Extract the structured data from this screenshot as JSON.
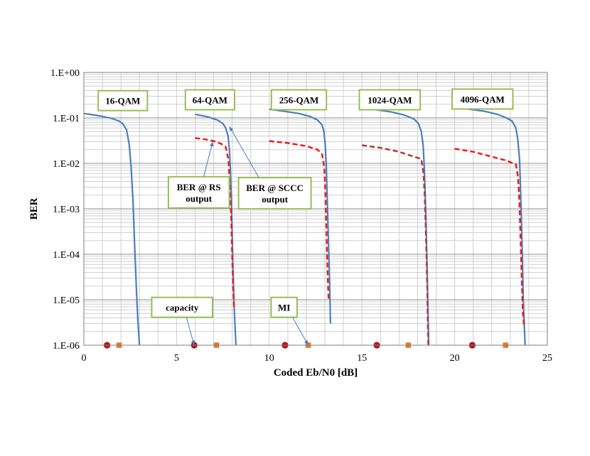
{
  "chart_data": {
    "type": "line",
    "xlabel": "Coded Eb/N0 [dB]",
    "ylabel": "BER",
    "xlim": [
      0,
      25
    ],
    "ylim": [
      1e-06,
      1
    ],
    "y_scale": "log",
    "grid": true,
    "x_ticks": [
      "0",
      "5",
      "10",
      "15",
      "20",
      "25"
    ],
    "y_ticks": [
      "1.E+00",
      "1.E-01",
      "1.E-02",
      "1.E-03",
      "1.E-04",
      "1.E-05",
      "1.E-06"
    ],
    "series": [
      {
        "group": "16-QAM",
        "kind": "sccc",
        "color": "#4a7ebf",
        "points": [
          [
            0.0,
            0.125
          ],
          [
            0.8,
            0.112
          ],
          [
            1.5,
            0.098
          ],
          [
            1.9,
            0.085
          ],
          [
            2.1,
            0.074
          ],
          [
            2.3,
            0.055
          ],
          [
            2.45,
            0.025
          ],
          [
            2.55,
            0.008
          ],
          [
            2.65,
            0.0015
          ],
          [
            2.75,
            0.00012
          ],
          [
            2.85,
            1.2e-05
          ],
          [
            2.92,
            3e-06
          ],
          [
            3.0,
            1e-06
          ]
        ]
      },
      {
        "group": "64-QAM",
        "kind": "sccc",
        "color": "#4a7ebf",
        "points": [
          [
            6.0,
            0.12
          ],
          [
            6.7,
            0.105
          ],
          [
            7.2,
            0.09
          ],
          [
            7.5,
            0.075
          ],
          [
            7.65,
            0.06
          ],
          [
            7.78,
            0.04
          ],
          [
            7.85,
            0.02
          ],
          [
            7.9,
            0.008
          ],
          [
            7.95,
            0.002
          ],
          [
            8.0,
            0.0003
          ],
          [
            8.05,
            4e-05
          ],
          [
            8.12,
            5e-06
          ],
          [
            8.2,
            1e-06
          ]
        ]
      },
      {
        "group": "64-QAM",
        "kind": "rs",
        "color": "#ee1c1c",
        "points": [
          [
            6.0,
            0.036
          ],
          [
            6.5,
            0.034
          ],
          [
            7.0,
            0.031
          ],
          [
            7.4,
            0.027
          ],
          [
            7.65,
            0.023
          ],
          [
            7.8,
            0.012
          ],
          [
            7.88,
            0.003
          ],
          [
            7.95,
            0.0006
          ],
          [
            8.0,
            0.0001
          ],
          [
            8.05,
            2e-05
          ],
          [
            8.1,
            7e-06
          ]
        ]
      },
      {
        "group": "256-QAM",
        "kind": "sccc",
        "color": "#4a7ebf",
        "points": [
          [
            10.0,
            0.155
          ],
          [
            10.8,
            0.14
          ],
          [
            11.6,
            0.125
          ],
          [
            12.2,
            0.108
          ],
          [
            12.6,
            0.09
          ],
          [
            12.85,
            0.07
          ],
          [
            12.95,
            0.05
          ],
          [
            13.02,
            0.025
          ],
          [
            13.07,
            0.01
          ],
          [
            13.12,
            0.002
          ],
          [
            13.18,
            0.0003
          ],
          [
            13.25,
            3e-05
          ],
          [
            13.3,
            3e-06
          ]
        ]
      },
      {
        "group": "256-QAM",
        "kind": "rs",
        "color": "#ee1c1c",
        "points": [
          [
            10.0,
            0.031
          ],
          [
            11.0,
            0.028
          ],
          [
            12.0,
            0.024
          ],
          [
            12.6,
            0.02
          ],
          [
            12.85,
            0.016
          ],
          [
            12.97,
            0.008
          ],
          [
            13.03,
            0.002
          ],
          [
            13.08,
            0.0004
          ],
          [
            13.12,
            8e-05
          ],
          [
            13.17,
            2e-05
          ],
          [
            13.2,
            1e-05
          ]
        ]
      },
      {
        "group": "1024-QAM",
        "kind": "sccc",
        "color": "#4a7ebf",
        "points": [
          [
            15.0,
            0.165
          ],
          [
            15.8,
            0.15
          ],
          [
            16.6,
            0.135
          ],
          [
            17.3,
            0.115
          ],
          [
            17.8,
            0.095
          ],
          [
            18.05,
            0.075
          ],
          [
            18.2,
            0.05
          ],
          [
            18.3,
            0.025
          ],
          [
            18.35,
            0.01
          ],
          [
            18.4,
            0.003
          ],
          [
            18.45,
            0.0006
          ],
          [
            18.5,
            8e-05
          ],
          [
            18.55,
            1e-05
          ],
          [
            18.6,
            1e-06
          ]
        ]
      },
      {
        "group": "1024-QAM",
        "kind": "rs",
        "color": "#b03a3a",
        "points": [
          [
            15.0,
            0.025
          ],
          [
            16.0,
            0.022
          ],
          [
            17.0,
            0.018
          ],
          [
            17.8,
            0.014
          ],
          [
            18.2,
            0.0125
          ],
          [
            18.32,
            0.006
          ],
          [
            18.38,
            0.002
          ],
          [
            18.43,
            0.0005
          ],
          [
            18.48,
            0.0001
          ],
          [
            18.52,
            2e-05
          ],
          [
            18.55,
            3e-06
          ],
          [
            18.58,
            1e-06
          ]
        ]
      },
      {
        "group": "4096-QAM",
        "kind": "sccc",
        "color": "#4a7ebf",
        "points": [
          [
            20.0,
            0.17
          ],
          [
            20.8,
            0.155
          ],
          [
            21.6,
            0.14
          ],
          [
            22.3,
            0.12
          ],
          [
            22.8,
            0.1
          ],
          [
            23.1,
            0.085
          ],
          [
            23.3,
            0.06
          ],
          [
            23.4,
            0.035
          ],
          [
            23.5,
            0.012
          ],
          [
            23.55,
            0.003
          ],
          [
            23.6,
            0.0006
          ],
          [
            23.65,
            0.0001
          ],
          [
            23.7,
            1e-05
          ],
          [
            23.8,
            1e-06
          ]
        ]
      },
      {
        "group": "4096-QAM",
        "kind": "rs",
        "color": "#ee1c1c",
        "points": [
          [
            20.0,
            0.021
          ],
          [
            21.0,
            0.018
          ],
          [
            22.0,
            0.014
          ],
          [
            22.8,
            0.0115
          ],
          [
            23.3,
            0.0095
          ],
          [
            23.42,
            0.005
          ],
          [
            23.5,
            0.0012
          ],
          [
            23.56,
            0.0002
          ],
          [
            23.62,
            3e-05
          ],
          [
            23.68,
            5e-06
          ],
          [
            23.75,
            2.5e-06
          ]
        ]
      }
    ],
    "markers": {
      "capacity": {
        "color": "#c0141e",
        "shape": "circle",
        "x": [
          1.25,
          5.95,
          10.85,
          15.8,
          20.95
        ]
      },
      "mi": {
        "color": "#e07b30",
        "shape": "square",
        "x": [
          1.9,
          7.15,
          12.1,
          17.5,
          22.75
        ]
      }
    },
    "annotations": {
      "qam_labels": [
        {
          "text": "16-QAM",
          "x": 2.1,
          "y": 0.24
        },
        {
          "text": "64-QAM",
          "x": 6.8,
          "y": 0.25
        },
        {
          "text": "256-QAM",
          "x": 11.6,
          "y": 0.25
        },
        {
          "text": "1024-QAM",
          "x": 16.5,
          "y": 0.25
        },
        {
          "text": "4096-QAM",
          "x": 21.5,
          "y": 0.26
        }
      ],
      "callouts": [
        {
          "lines": [
            "BER @ RS",
            "output"
          ],
          "x": 6.2,
          "y": 0.0023,
          "arrow_to": [
            6.95,
            0.03
          ]
        },
        {
          "lines": [
            "BER @ SCCC",
            "output"
          ],
          "x": 10.3,
          "y": 0.0022,
          "arrow_to": [
            7.85,
            0.065
          ]
        },
        {
          "lines": [
            "capacity"
          ],
          "x": 5.3,
          "y": 6.8e-06,
          "arrow_to": [
            5.95,
            1e-06
          ]
        },
        {
          "lines": [
            "MI"
          ],
          "x": 10.8,
          "y": 6.8e-06,
          "arrow_to": [
            12.1,
            1e-06
          ]
        }
      ]
    }
  }
}
